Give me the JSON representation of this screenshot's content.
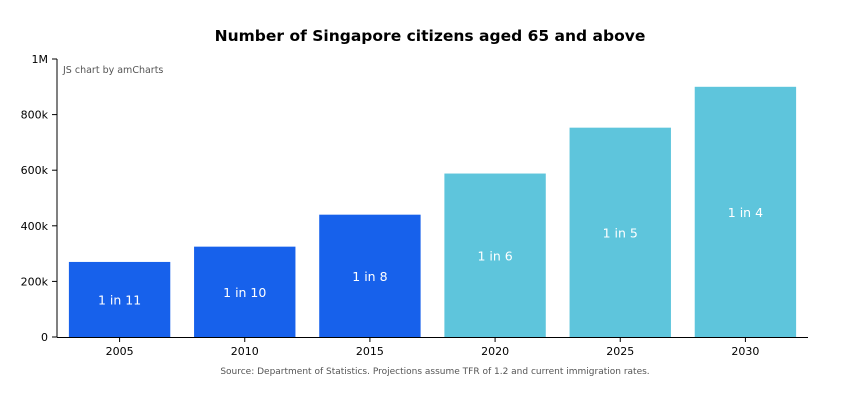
{
  "chart_data": {
    "type": "bar",
    "title": "Number of Singapore citizens aged 65 and above",
    "credit": "JS chart by amCharts",
    "source": "Source: Department of Statistics. Projections assume TFR of 1.2 and current immigration rates.",
    "categories": [
      "2005",
      "2010",
      "2015",
      "2020",
      "2025",
      "2030"
    ],
    "values": [
      270000,
      325000,
      440000,
      588000,
      753000,
      900000
    ],
    "bar_labels": [
      "1 in 11",
      "1 in 10",
      "1 in 8",
      "1 in 6",
      "1 in 5",
      "1 in 4"
    ],
    "bar_colors": [
      "#1761eb",
      "#1761eb",
      "#1761eb",
      "#5ec5dc",
      "#5ec5dc",
      "#5ec5dc"
    ],
    "ylim": [
      0,
      1000000
    ],
    "yticks": [
      0,
      200000,
      400000,
      600000,
      800000,
      1000000
    ],
    "ytick_labels": [
      "0",
      "200k",
      "400k",
      "600k",
      "800k",
      "1M"
    ],
    "xlabel": "",
    "ylabel": "",
    "grid": false,
    "colors": {
      "historical": "#1761eb",
      "projected": "#5ec5dc",
      "axis": "#000000"
    }
  }
}
